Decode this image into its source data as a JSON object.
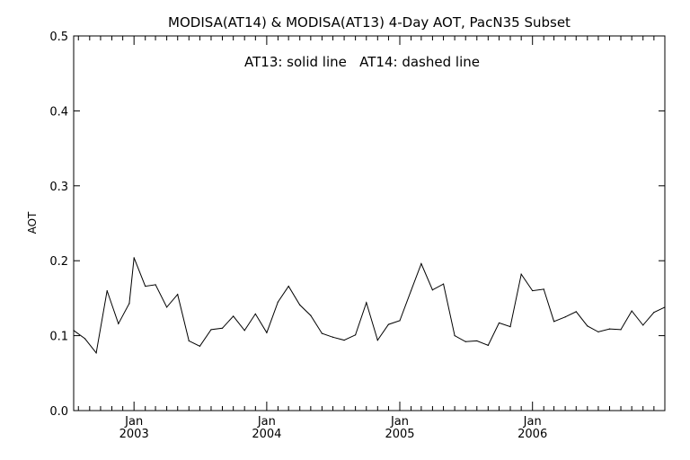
{
  "chart_data": {
    "type": "line",
    "title": "MODISA(AT14) & MODISA(AT13) 4-Day AOT, PacN35 Subset",
    "annotation": "AT13: solid line   AT14: dashed line",
    "ylabel": "AOT",
    "xlabel": "",
    "ylim": [
      0.0,
      0.5
    ],
    "yticks": [
      "0.0",
      "0.1",
      "0.2",
      "0.3",
      "0.4",
      "0.5"
    ],
    "xlim": [
      "2002-07-19",
      "2006-12-31"
    ],
    "xticks": [
      {
        "date": "2003-01-01",
        "month": "Jan",
        "year": "2003"
      },
      {
        "date": "2004-01-01",
        "month": "Jan",
        "year": "2004"
      },
      {
        "date": "2005-01-01",
        "month": "Jan",
        "year": "2005"
      },
      {
        "date": "2006-01-01",
        "month": "Jan",
        "year": "2006"
      }
    ],
    "grid": false,
    "series": [
      {
        "style": "solid",
        "color": "#000000",
        "points": [
          [
            "2002-07-19",
            0.107
          ],
          [
            "2002-08-19",
            0.096
          ],
          [
            "2002-09-19",
            0.077
          ],
          [
            "2002-10-19",
            0.16
          ],
          [
            "2002-11-19",
            0.116
          ],
          [
            "2002-12-19",
            0.143
          ],
          [
            "2003-01-01",
            0.204
          ],
          [
            "2003-02-01",
            0.166
          ],
          [
            "2003-03-01",
            0.168
          ],
          [
            "2003-04-01",
            0.138
          ],
          [
            "2003-05-01",
            0.155
          ],
          [
            "2003-06-01",
            0.093
          ],
          [
            "2003-07-01",
            0.086
          ],
          [
            "2003-08-01",
            0.108
          ],
          [
            "2003-09-01",
            0.11
          ],
          [
            "2003-10-01",
            0.126
          ],
          [
            "2003-11-01",
            0.107
          ],
          [
            "2003-12-01",
            0.129
          ],
          [
            "2004-01-01",
            0.104
          ],
          [
            "2004-02-01",
            0.145
          ],
          [
            "2004-03-01",
            0.166
          ],
          [
            "2004-04-01",
            0.141
          ],
          [
            "2004-05-01",
            0.127
          ],
          [
            "2004-06-01",
            0.103
          ],
          [
            "2004-07-01",
            0.098
          ],
          [
            "2004-08-01",
            0.094
          ],
          [
            "2004-09-01",
            0.101
          ],
          [
            "2004-10-01",
            0.144
          ],
          [
            "2004-11-01",
            0.094
          ],
          [
            "2004-12-01",
            0.115
          ],
          [
            "2005-01-01",
            0.12
          ],
          [
            "2005-02-01",
            0.16
          ],
          [
            "2005-03-01",
            0.196
          ],
          [
            "2005-04-01",
            0.161
          ],
          [
            "2005-05-01",
            0.169
          ],
          [
            "2005-06-01",
            0.1
          ],
          [
            "2005-07-01",
            0.092
          ],
          [
            "2005-08-01",
            0.093
          ],
          [
            "2005-09-01",
            0.087
          ],
          [
            "2005-10-01",
            0.117
          ],
          [
            "2005-11-01",
            0.112
          ],
          [
            "2005-12-01",
            0.182
          ],
          [
            "2006-01-01",
            0.16
          ],
          [
            "2006-02-01",
            0.162
          ],
          [
            "2006-03-01",
            0.119
          ],
          [
            "2006-04-01",
            0.125
          ],
          [
            "2006-05-01",
            0.132
          ],
          [
            "2006-06-01",
            0.113
          ],
          [
            "2006-07-01",
            0.105
          ],
          [
            "2006-08-01",
            0.109
          ],
          [
            "2006-09-01",
            0.108
          ],
          [
            "2006-10-01",
            0.133
          ],
          [
            "2006-11-01",
            0.114
          ],
          [
            "2006-12-01",
            0.131
          ],
          [
            "2006-12-31",
            0.138
          ]
        ]
      }
    ]
  }
}
